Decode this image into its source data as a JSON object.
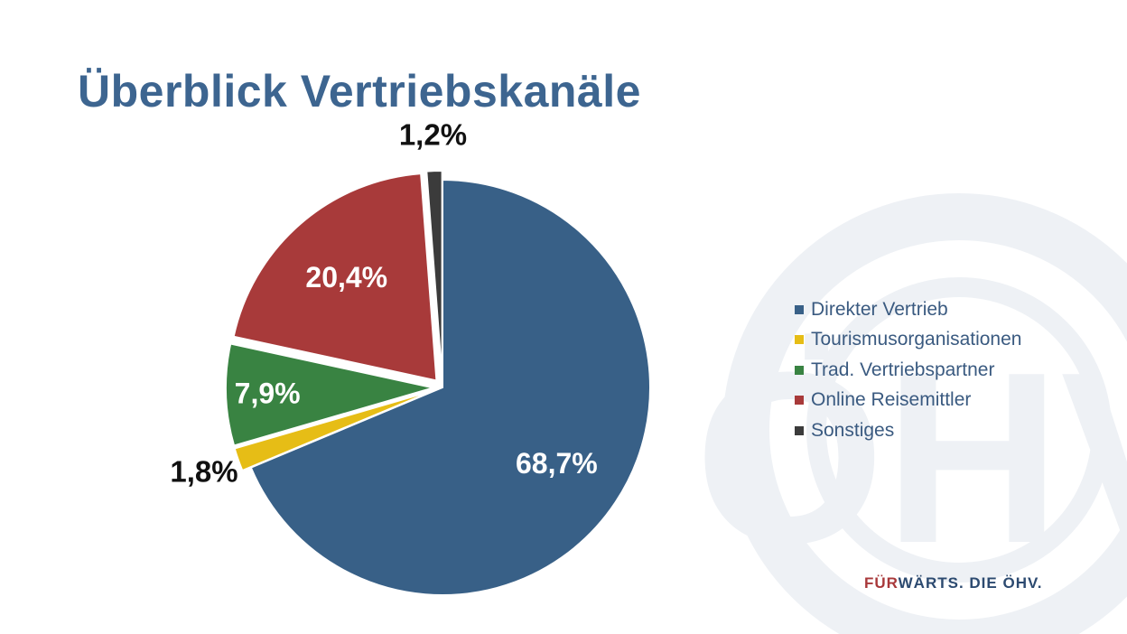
{
  "page": {
    "title": "Überblick Vertriebskanäle",
    "footer_highlight": "FÜR",
    "footer_rest": "WÄRTS. DIE ÖHV.",
    "footer_colors": {
      "highlight": "#a8383a",
      "rest": "#2c4a70"
    },
    "watermark": {
      "text": "ÖHV",
      "color": "#eef1f5"
    }
  },
  "chart_data": {
    "type": "pie",
    "title": "",
    "legend_position": "right",
    "start_angle_deg": 0,
    "direction": "clockwise",
    "slices": [
      {
        "label": "Direkter Vertrieb",
        "value": 68.7,
        "display": "68,7%",
        "color": "#386087",
        "label_color": "#ffffff",
        "label_placement": "inside",
        "exploded": false
      },
      {
        "label": "Tourismusorganisationen",
        "value": 1.8,
        "display": "1,8%",
        "color": "#e6bd16",
        "label_color": "#111111",
        "label_placement": "outside",
        "exploded": true
      },
      {
        "label": "Trad. Vertriebspartner",
        "value": 7.9,
        "display": "7,9%",
        "color": "#398342",
        "label_color": "#ffffff",
        "label_placement": "inside",
        "exploded": true
      },
      {
        "label": "Online Reisemittler",
        "value": 20.4,
        "display": "20,4%",
        "color": "#a83a3a",
        "label_color": "#ffffff",
        "label_placement": "inside",
        "exploded": true
      },
      {
        "label": "Sonstiges",
        "value": 1.2,
        "display": "1,2%",
        "color": "#3b3b3b",
        "label_color": "#111111",
        "label_placement": "outside",
        "exploded": true
      }
    ]
  }
}
